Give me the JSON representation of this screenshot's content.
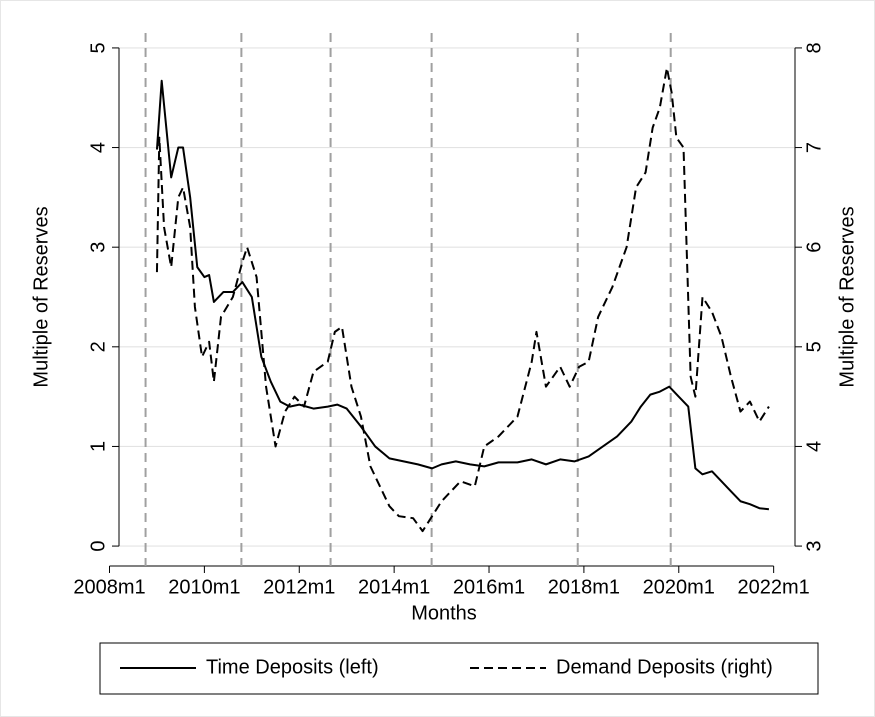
{
  "chart_data": {
    "type": "line",
    "xlabel": "Months",
    "ylabel": "Multiple of Reserves",
    "y2label": "Multiple of Reserves",
    "xlim": [
      2008.2,
      2022.45
    ],
    "xticks": [
      {
        "value": 2008,
        "label": "2008m1"
      },
      {
        "value": 2010,
        "label": "2010m1"
      },
      {
        "value": 2012,
        "label": "2012m1"
      },
      {
        "value": 2014,
        "label": "2014m1"
      },
      {
        "value": 2016,
        "label": "2016m1"
      },
      {
        "value": 2018,
        "label": "2018m1"
      },
      {
        "value": 2020,
        "label": "2020m1"
      },
      {
        "value": 2022,
        "label": "2022m1"
      }
    ],
    "ylim": [
      -0.2,
      5.2
    ],
    "yticks": [
      0,
      1,
      2,
      3,
      4,
      5
    ],
    "y2lim": [
      2.8,
      8.2
    ],
    "y2ticks": [
      3,
      4,
      5,
      6,
      7,
      8
    ],
    "grid": true,
    "legend": "bottom",
    "vlines": [
      2008.76,
      2010.78,
      2012.66,
      2014.79,
      2017.87,
      2019.83
    ],
    "series": [
      {
        "name": "Time Deposits (left)",
        "color": "#000000",
        "line_style": "solid",
        "x": [
          2009.0,
          2009.1,
          2009.3,
          2009.45,
          2009.55,
          2009.7,
          2009.85,
          2010.0,
          2010.1,
          2010.2,
          2010.4,
          2010.6,
          2010.8,
          2011.0,
          2011.2,
          2011.4,
          2011.6,
          2011.8,
          2012.0,
          2012.3,
          2012.6,
          2012.8,
          2013.0,
          2013.3,
          2013.6,
          2013.9,
          2014.2,
          2014.5,
          2014.8,
          2015.0,
          2015.3,
          2015.6,
          2015.9,
          2016.2,
          2016.6,
          2016.9,
          2017.2,
          2017.5,
          2017.8,
          2018.1,
          2018.4,
          2018.7,
          2019.0,
          2019.2,
          2019.4,
          2019.6,
          2019.8,
          2020.0,
          2020.2,
          2020.35,
          2020.5,
          2020.7,
          2020.9,
          2021.1,
          2021.3,
          2021.5,
          2021.7,
          2021.9
        ],
        "values": [
          3.98,
          4.67,
          3.7,
          4.0,
          4.0,
          3.5,
          2.8,
          2.7,
          2.72,
          2.45,
          2.55,
          2.55,
          2.65,
          2.5,
          1.9,
          1.65,
          1.45,
          1.4,
          1.42,
          1.38,
          1.4,
          1.42,
          1.38,
          1.2,
          1.0,
          0.88,
          0.85,
          0.82,
          0.78,
          0.82,
          0.85,
          0.82,
          0.8,
          0.84,
          0.84,
          0.87,
          0.82,
          0.87,
          0.85,
          0.9,
          1.0,
          1.1,
          1.25,
          1.4,
          1.52,
          1.55,
          1.6,
          1.5,
          1.4,
          0.78,
          0.72,
          0.75,
          0.65,
          0.55,
          0.45,
          0.42,
          0.38,
          0.37
        ]
      },
      {
        "name": "Demand Deposits (right)",
        "color": "#000000",
        "line_style": "dashed",
        "axis": "y2",
        "x": [
          2009.0,
          2009.05,
          2009.15,
          2009.3,
          2009.45,
          2009.55,
          2009.7,
          2009.8,
          2009.95,
          2010.1,
          2010.2,
          2010.35,
          2010.6,
          2010.8,
          2010.9,
          2011.1,
          2011.3,
          2011.5,
          2011.7,
          2011.9,
          2012.1,
          2012.3,
          2012.6,
          2012.75,
          2012.9,
          2013.1,
          2013.3,
          2013.5,
          2013.7,
          2013.9,
          2014.1,
          2014.4,
          2014.6,
          2014.8,
          2015.0,
          2015.2,
          2015.4,
          2015.7,
          2015.9,
          2016.2,
          2016.6,
          2016.9,
          2017.0,
          2017.2,
          2017.5,
          2017.7,
          2017.9,
          2018.1,
          2018.3,
          2018.6,
          2018.9,
          2019.1,
          2019.3,
          2019.45,
          2019.6,
          2019.75,
          2019.85,
          2019.95,
          2020.1,
          2020.25,
          2020.35,
          2020.5,
          2020.7,
          2020.9,
          2021.1,
          2021.3,
          2021.5,
          2021.7,
          2021.9
        ],
        "values": [
          5.75,
          7.1,
          6.2,
          5.8,
          6.5,
          6.6,
          6.2,
          5.4,
          4.9,
          5.05,
          4.65,
          5.3,
          5.5,
          5.85,
          6.0,
          5.7,
          4.6,
          4.0,
          4.35,
          4.5,
          4.4,
          4.75,
          4.85,
          5.15,
          5.2,
          4.6,
          4.3,
          3.8,
          3.6,
          3.4,
          3.3,
          3.28,
          3.15,
          3.3,
          3.45,
          3.55,
          3.65,
          3.6,
          4.0,
          4.1,
          4.3,
          4.85,
          5.15,
          4.6,
          4.8,
          4.6,
          4.8,
          4.85,
          5.3,
          5.6,
          6.0,
          6.6,
          6.75,
          7.2,
          7.4,
          7.8,
          7.55,
          7.1,
          7.0,
          4.7,
          4.5,
          5.5,
          5.35,
          5.1,
          4.7,
          4.35,
          4.45,
          4.25,
          4.4
        ]
      }
    ]
  }
}
